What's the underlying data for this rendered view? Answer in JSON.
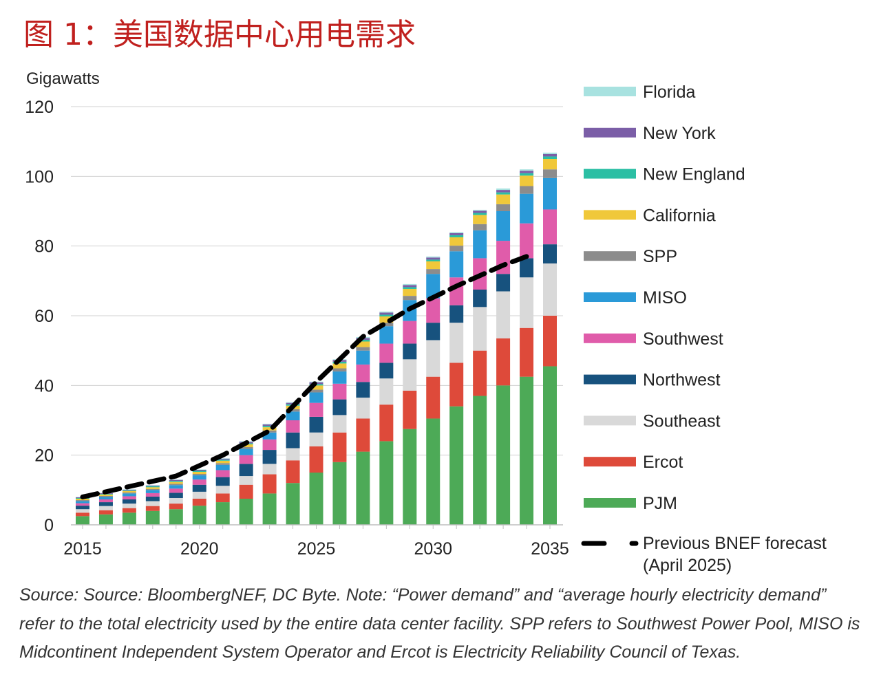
{
  "figure_title": "图 1：美国数据中心用电需求",
  "source_note": "Source: Source: BloombergNEF, DC Byte. Note: “Power demand” and “average hourly electricity demand” refer to the total electricity used by the entire data center facility. SPP refers to Southwest Power Pool, MISO is Midcontinent Independent System Operator and Ercot is Electricity Reliability Council of Texas.",
  "chart_data": {
    "type": "bar",
    "stacked": true,
    "title": "图 1：美国数据中心用电需求",
    "ylabel": "Gigawatts",
    "xlabel": "",
    "ylim": [
      0,
      120
    ],
    "yticks": [
      0,
      20,
      40,
      60,
      80,
      100,
      120
    ],
    "xticks": [
      "2015",
      "2020",
      "2025",
      "2030",
      "2035"
    ],
    "grid": true,
    "legend_position": "right",
    "categories": [
      "2015",
      "2016",
      "2017",
      "2018",
      "2019",
      "2020",
      "2021",
      "2022",
      "2023",
      "2024",
      "2025",
      "2026",
      "2027",
      "2028",
      "2029",
      "2030",
      "2031",
      "2032",
      "2033",
      "2034",
      "2035"
    ],
    "series": [
      {
        "name": "PJM",
        "color": "#4daa57",
        "values": [
          2.5,
          3,
          3.5,
          4,
          4.5,
          5.5,
          6.5,
          7.5,
          9,
          12,
          15,
          18,
          21,
          24,
          27.5,
          30.5,
          34,
          37,
          40,
          42.5,
          45.5
        ]
      },
      {
        "name": "Ercot",
        "color": "#de4a3a",
        "values": [
          1,
          1.2,
          1.3,
          1.4,
          1.6,
          2,
          2.5,
          4,
          5.5,
          6.5,
          7.5,
          8.5,
          9.5,
          10.5,
          11,
          12,
          12.5,
          13,
          13.5,
          14,
          14.5
        ]
      },
      {
        "name": "Southeast",
        "color": "#d9d9d9",
        "values": [
          1,
          1.2,
          1.3,
          1.4,
          1.6,
          2,
          2.2,
          2.5,
          3,
          3.5,
          4,
          5,
          6,
          7.5,
          9,
          10.5,
          11.5,
          12.5,
          13.5,
          14.5,
          15
        ]
      },
      {
        "name": "Northwest",
        "color": "#17527e",
        "values": [
          1,
          1.1,
          1.2,
          1.3,
          1.5,
          2,
          2.5,
          3.5,
          4,
          4.5,
          4.5,
          4.5,
          4.5,
          4.5,
          4.5,
          5,
          5,
          5,
          5,
          5.5,
          5.5
        ]
      },
      {
        "name": "Southwest",
        "color": "#e05caa",
        "values": [
          0.7,
          0.8,
          0.9,
          1,
          1.2,
          1.5,
          2,
          2.5,
          3,
          3.5,
          4,
          4.5,
          5,
          5.5,
          6.5,
          7,
          8,
          9,
          9.5,
          10,
          10
        ]
      },
      {
        "name": "MISO",
        "color": "#2a9ad8",
        "values": [
          0.6,
          0.7,
          0.8,
          0.9,
          1,
          1.2,
          1.5,
          1.8,
          2,
          2.5,
          3,
          3.5,
          4,
          5,
          6,
          7,
          7.5,
          8,
          8.5,
          8.5,
          9
        ]
      },
      {
        "name": "SPP",
        "color": "#8c8c8c",
        "values": [
          0.3,
          0.3,
          0.3,
          0.3,
          0.4,
          0.4,
          0.5,
          0.5,
          0.6,
          0.7,
          0.8,
          0.9,
          1,
          1,
          1.2,
          1.4,
          1.6,
          1.8,
          2,
          2.2,
          2.5
        ]
      },
      {
        "name": "California",
        "color": "#f0c83a",
        "values": [
          0.4,
          0.4,
          0.4,
          0.5,
          0.5,
          0.6,
          0.7,
          0.8,
          0.9,
          1,
          1.2,
          1.4,
          1.6,
          1.8,
          2,
          2.2,
          2.4,
          2.6,
          2.8,
          3,
          3
        ]
      },
      {
        "name": "New England",
        "color": "#2bbfa4",
        "values": [
          0.2,
          0.2,
          0.2,
          0.3,
          0.3,
          0.3,
          0.3,
          0.3,
          0.4,
          0.4,
          0.4,
          0.5,
          0.5,
          0.5,
          0.5,
          0.5,
          0.6,
          0.6,
          0.6,
          0.7,
          0.7
        ]
      },
      {
        "name": "New York",
        "color": "#7b5ea7",
        "values": [
          0.2,
          0.2,
          0.2,
          0.2,
          0.3,
          0.3,
          0.3,
          0.4,
          0.4,
          0.4,
          0.5,
          0.5,
          0.5,
          0.6,
          0.6,
          0.6,
          0.6,
          0.6,
          0.7,
          0.7,
          0.7
        ]
      },
      {
        "name": "Florida",
        "color": "#a8e2e0",
        "values": [
          0.1,
          0.1,
          0.1,
          0.1,
          0.1,
          0.1,
          0.1,
          0.2,
          0.2,
          0.2,
          0.2,
          0.2,
          0.3,
          0.3,
          0.3,
          0.3,
          0.3,
          0.3,
          0.4,
          0.4,
          0.4
        ]
      }
    ],
    "previous_forecast": {
      "name": "Previous BNEF forecast (April 2025)",
      "color": "#000000",
      "x": [
        "2015",
        "2017",
        "2019",
        "2021",
        "2023",
        "2025",
        "2027",
        "2029",
        "2031",
        "2033",
        "2034"
      ],
      "values": [
        8,
        11,
        14,
        20,
        27,
        41,
        54,
        62,
        68.5,
        74.5,
        77
      ]
    },
    "legend": [
      {
        "label": "Florida"
      },
      {
        "label": "New York"
      },
      {
        "label": "New England"
      },
      {
        "label": "California"
      },
      {
        "label": "SPP"
      },
      {
        "label": "MISO"
      },
      {
        "label": "Southwest"
      },
      {
        "label": "Northwest"
      },
      {
        "label": "Southeast"
      },
      {
        "label": "Ercot"
      },
      {
        "label": "PJM"
      },
      {
        "label": "Previous BNEF forecast (April 2025)"
      }
    ]
  }
}
